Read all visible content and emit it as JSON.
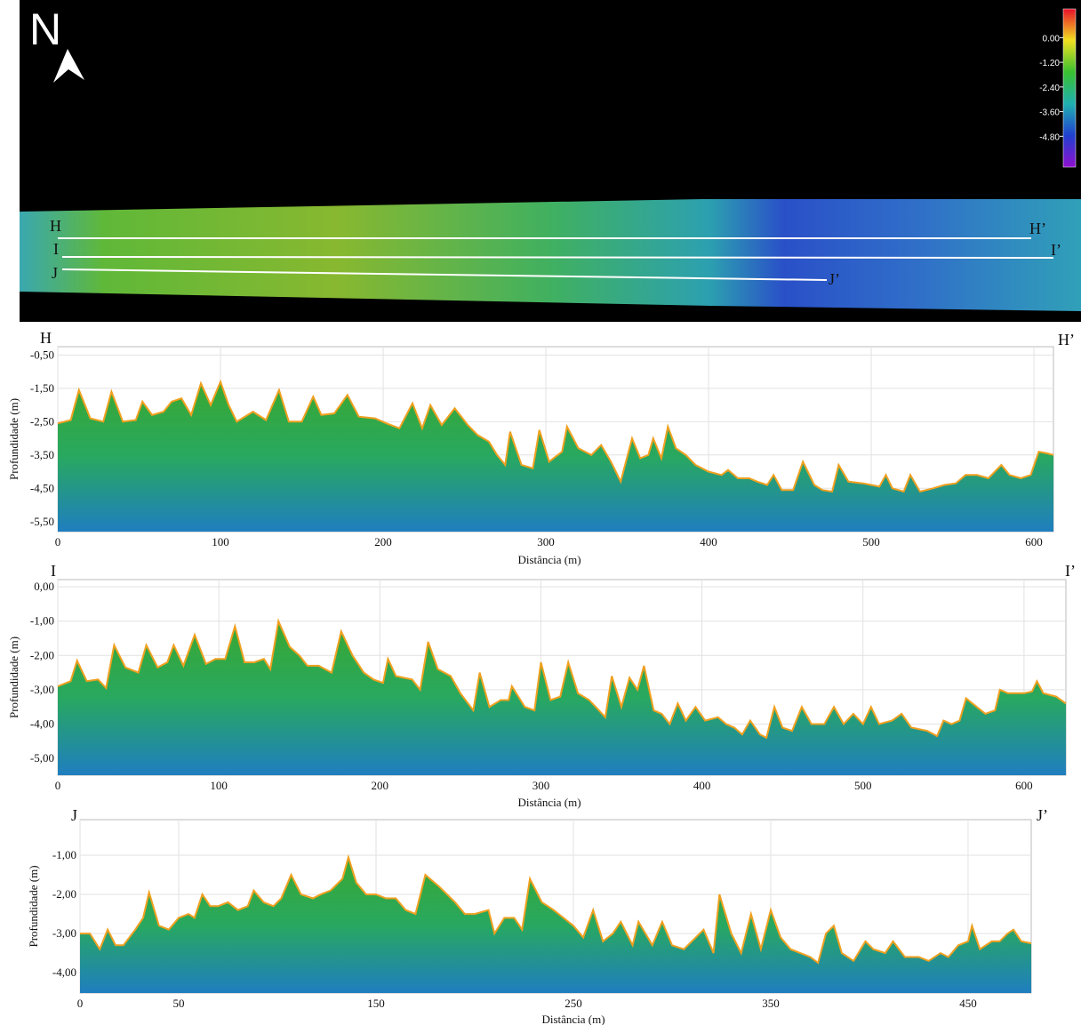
{
  "map": {
    "north": "N",
    "colorbar": {
      "colors": [
        "#e8102a",
        "#f0e020",
        "#38c030",
        "#20b0b0",
        "#2040d0",
        "#9010d0"
      ],
      "lim": [
        -6.3,
        1.4
      ],
      "ticks": [
        {
          "value": 0,
          "label": "0.00"
        },
        {
          "value": -1.2,
          "label": "-1.20"
        },
        {
          "value": -2.4,
          "label": "-2.40"
        },
        {
          "value": -3.6,
          "label": "-3.60"
        },
        {
          "value": -4.8,
          "label": "-4.80"
        }
      ]
    }
  },
  "chart_data": [
    {
      "type": "area",
      "start_label": "H",
      "end_label": "H’",
      "ylabel": "Profundidade (m)",
      "xlabel": "Distância (m)",
      "color": "#f0a020",
      "grid": true,
      "xlim": [
        0,
        612
      ],
      "ylim": [
        -5.8,
        -0.25
      ],
      "xticks": [
        0,
        100,
        200,
        300,
        400,
        500,
        600
      ],
      "yticks": [
        {
          "value": -0.5,
          "label": "-0,50"
        },
        {
          "value": -1.5,
          "label": "-1,50"
        },
        {
          "value": -2.5,
          "label": "-2,50"
        },
        {
          "value": -3.5,
          "label": "-3,50"
        },
        {
          "value": -4.5,
          "label": "-4,50"
        },
        {
          "value": -5.5,
          "label": "-5,50"
        }
      ],
      "x": [
        0,
        8,
        13,
        20,
        28,
        33,
        40,
        48,
        52,
        58,
        65,
        70,
        76,
        82,
        88,
        94,
        100,
        105,
        110,
        120,
        128,
        136,
        142,
        150,
        157,
        162,
        170,
        178,
        185,
        195,
        202,
        210,
        218,
        224,
        229,
        236,
        244,
        252,
        258,
        265,
        270,
        275,
        278,
        285,
        292,
        296,
        302,
        310,
        313,
        320,
        328,
        334,
        340,
        343,
        346,
        353,
        358,
        363,
        366,
        371,
        375,
        380,
        386,
        392,
        400,
        408,
        412,
        418,
        425,
        430,
        436,
        440,
        445,
        452,
        458,
        465,
        470,
        476,
        480,
        486,
        495,
        500,
        505,
        509,
        513,
        520,
        524,
        530,
        538,
        545,
        552,
        558,
        565,
        572,
        580,
        585,
        592,
        598,
        603,
        608,
        612
      ],
      "values": [
        -2.55,
        -2.45,
        -1.55,
        -2.4,
        -2.5,
        -1.6,
        -2.5,
        -2.45,
        -1.9,
        -2.3,
        -2.2,
        -1.9,
        -1.8,
        -2.3,
        -1.35,
        -2.0,
        -1.3,
        -2.0,
        -2.5,
        -2.2,
        -2.45,
        -1.55,
        -2.5,
        -2.5,
        -1.75,
        -2.3,
        -2.25,
        -1.7,
        -2.35,
        -2.4,
        -2.55,
        -2.7,
        -1.95,
        -2.7,
        -2.0,
        -2.6,
        -2.1,
        -2.6,
        -2.9,
        -3.1,
        -3.5,
        -3.8,
        -2.8,
        -3.8,
        -3.9,
        -2.75,
        -3.7,
        -3.4,
        -2.65,
        -3.3,
        -3.5,
        -3.2,
        -3.7,
        -4.0,
        -4.3,
        -3.0,
        -3.6,
        -3.5,
        -3.0,
        -3.6,
        -2.65,
        -3.3,
        -3.5,
        -3.8,
        -4.0,
        -4.1,
        -3.95,
        -4.2,
        -4.2,
        -4.3,
        -4.4,
        -4.1,
        -4.55,
        -4.55,
        -3.7,
        -4.4,
        -4.55,
        -4.6,
        -3.8,
        -4.3,
        -4.35,
        -4.4,
        -4.45,
        -4.1,
        -4.5,
        -4.6,
        -4.1,
        -4.6,
        -4.5,
        -4.4,
        -4.35,
        -4.1,
        -4.1,
        -4.2,
        -3.8,
        -4.1,
        -4.2,
        -4.1,
        -3.4,
        -3.45,
        -3.5
      ]
    },
    {
      "type": "area",
      "start_label": "I",
      "end_label": "I’",
      "ylabel": "Profundidade (m)",
      "xlabel": "Distância (m)",
      "color": "#f0a020",
      "grid": true,
      "xlim": [
        0,
        626
      ],
      "ylim": [
        -5.49,
        0.21
      ],
      "xticks": [
        0,
        100,
        200,
        300,
        400,
        500,
        600
      ],
      "yticks": [
        {
          "value": 0,
          "label": "0,00"
        },
        {
          "value": -1,
          "label": "-1,00"
        },
        {
          "value": -2,
          "label": "-2,00"
        },
        {
          "value": -3,
          "label": "-3,00"
        },
        {
          "value": -4,
          "label": "-4,00"
        },
        {
          "value": -5,
          "label": "-5,00"
        }
      ],
      "x": [
        0,
        8,
        12,
        18,
        25,
        30,
        35,
        42,
        50,
        55,
        62,
        68,
        72,
        78,
        85,
        92,
        98,
        104,
        110,
        116,
        122,
        128,
        132,
        137,
        144,
        150,
        155,
        162,
        170,
        176,
        183,
        190,
        196,
        202,
        205,
        210,
        220,
        225,
        230,
        236,
        244,
        250,
        258,
        262,
        268,
        275,
        280,
        282,
        290,
        296,
        300,
        306,
        312,
        317,
        323,
        330,
        336,
        340,
        344,
        350,
        355,
        360,
        364,
        370,
        375,
        380,
        385,
        390,
        396,
        402,
        410,
        415,
        420,
        425,
        430,
        436,
        440,
        445,
        450,
        456,
        462,
        468,
        476,
        482,
        488,
        494,
        500,
        505,
        510,
        518,
        524,
        530,
        540,
        546,
        550,
        555,
        560,
        564,
        568,
        576,
        582,
        585,
        590,
        600,
        605,
        608,
        612,
        620,
        626
      ],
      "values": [
        -2.9,
        -2.75,
        -2.15,
        -2.75,
        -2.7,
        -2.95,
        -1.7,
        -2.35,
        -2.5,
        -1.7,
        -2.35,
        -2.2,
        -1.7,
        -2.3,
        -1.4,
        -2.25,
        -2.1,
        -2.1,
        -1.15,
        -2.2,
        -2.2,
        -2.1,
        -2.4,
        -1.0,
        -1.75,
        -2.0,
        -2.3,
        -2.3,
        -2.5,
        -1.3,
        -2.0,
        -2.5,
        -2.7,
        -2.8,
        -2.1,
        -2.6,
        -2.7,
        -3.0,
        -1.6,
        -2.4,
        -2.6,
        -3.1,
        -3.6,
        -2.5,
        -3.5,
        -3.3,
        -3.3,
        -2.9,
        -3.5,
        -3.6,
        -2.2,
        -3.3,
        -3.2,
        -2.2,
        -3.1,
        -3.3,
        -3.6,
        -3.8,
        -2.6,
        -3.5,
        -2.65,
        -3.0,
        -2.3,
        -3.6,
        -3.7,
        -4.0,
        -3.4,
        -3.9,
        -3.5,
        -3.9,
        -3.8,
        -4.0,
        -4.1,
        -4.3,
        -3.9,
        -4.3,
        -4.4,
        -3.5,
        -4.1,
        -4.2,
        -3.5,
        -4.0,
        -4.0,
        -3.5,
        -4.0,
        -3.7,
        -4.0,
        -3.5,
        -4.0,
        -3.9,
        -3.7,
        -4.1,
        -4.2,
        -4.35,
        -3.9,
        -4.0,
        -3.9,
        -3.25,
        -3.4,
        -3.7,
        -3.6,
        -3.0,
        -3.1,
        -3.1,
        -3.05,
        -2.75,
        -3.1,
        -3.2,
        -3.4
      ]
    },
    {
      "type": "area",
      "start_label": "J",
      "end_label": "J’",
      "ylabel": "Profundidade (m)",
      "xlabel": "Distância (m)",
      "color": "#f0a020",
      "grid": true,
      "xlim": [
        0,
        482
      ],
      "ylim": [
        -4.52,
        -0.09
      ],
      "xticks": [
        0,
        50,
        150,
        250,
        350,
        450
      ],
      "yticks": [
        {
          "value": -1,
          "label": "-1,00"
        },
        {
          "value": -2,
          "label": "-2,00"
        },
        {
          "value": -3,
          "label": "-3,00"
        },
        {
          "value": -4,
          "label": "-4,00"
        }
      ],
      "x": [
        0,
        5,
        10,
        14,
        18,
        22,
        28,
        32,
        35,
        40,
        45,
        50,
        55,
        58,
        62,
        66,
        70,
        75,
        80,
        85,
        88,
        93,
        98,
        102,
        107,
        112,
        118,
        122,
        127,
        133,
        136,
        140,
        145,
        150,
        155,
        160,
        165,
        170,
        175,
        182,
        190,
        195,
        200,
        207,
        210,
        215,
        220,
        224,
        228,
        234,
        240,
        245,
        250,
        255,
        260,
        265,
        270,
        274,
        280,
        283,
        290,
        295,
        300,
        306,
        310,
        316,
        321,
        324,
        330,
        335,
        340,
        345,
        350,
        355,
        360,
        365,
        370,
        374,
        378,
        382,
        386,
        392,
        398,
        402,
        408,
        412,
        418,
        425,
        430,
        436,
        440,
        445,
        450,
        452,
        456,
        462,
        466,
        470,
        473,
        477,
        482
      ],
      "values": [
        -3.0,
        -3.0,
        -3.4,
        -2.9,
        -3.3,
        -3.3,
        -2.9,
        -2.6,
        -1.95,
        -2.8,
        -2.9,
        -2.6,
        -2.5,
        -2.6,
        -2.0,
        -2.3,
        -2.3,
        -2.2,
        -2.4,
        -2.3,
        -1.9,
        -2.2,
        -2.3,
        -2.1,
        -1.5,
        -2.0,
        -2.1,
        -2.0,
        -1.9,
        -1.6,
        -1.05,
        -1.7,
        -2.0,
        -2.0,
        -2.1,
        -2.1,
        -2.4,
        -2.5,
        -1.5,
        -1.8,
        -2.2,
        -2.5,
        -2.5,
        -2.4,
        -3.0,
        -2.6,
        -2.6,
        -2.9,
        -1.6,
        -2.2,
        -2.4,
        -2.6,
        -2.8,
        -3.1,
        -2.4,
        -3.2,
        -3.0,
        -2.7,
        -3.3,
        -2.7,
        -3.3,
        -2.7,
        -3.3,
        -3.4,
        -3.2,
        -2.9,
        -3.5,
        -2.0,
        -3.0,
        -3.5,
        -2.5,
        -3.4,
        -2.4,
        -3.1,
        -3.4,
        -3.5,
        -3.6,
        -3.75,
        -3.0,
        -2.8,
        -3.5,
        -3.7,
        -3.2,
        -3.4,
        -3.5,
        -3.2,
        -3.6,
        -3.6,
        -3.7,
        -3.5,
        -3.6,
        -3.3,
        -3.2,
        -2.8,
        -3.4,
        -3.2,
        -3.2,
        -3.0,
        -2.9,
        -3.2,
        -3.25
      ]
    }
  ]
}
